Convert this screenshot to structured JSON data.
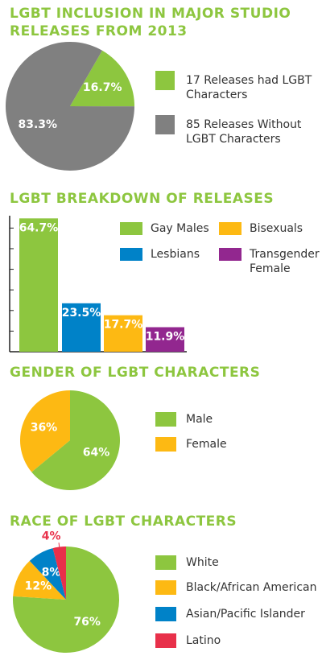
{
  "chart_data": [
    {
      "type": "pie",
      "title": "LGBT INCLUSION IN MAJOR STUDIO RELEASES FROM 2013",
      "categories": [
        "17 Releases had LGBT Characters",
        "85 Releases Without LGBT Characters"
      ],
      "values": [
        16.7,
        83.3
      ],
      "value_labels": [
        "16.7%",
        "83.3%"
      ],
      "colors": [
        "#8dc63f",
        "#808080"
      ]
    },
    {
      "type": "bar",
      "title": "LGBT BREAKDOWN OF RELEASES",
      "categories": [
        "Gay Males",
        "Lesbians",
        "Bisexuals",
        "Transgender Female"
      ],
      "values": [
        64.7,
        23.5,
        17.7,
        11.9
      ],
      "value_labels": [
        "64.7%",
        "23.5%",
        "17.7%",
        "11.9%"
      ],
      "colors": [
        "#8dc63f",
        "#0082c8",
        "#fdb913",
        "#92278f"
      ],
      "ylim": [
        0,
        66
      ],
      "yticks": [
        0,
        10,
        20,
        30,
        40,
        50,
        60
      ]
    },
    {
      "type": "pie",
      "title": "GENDER OF LGBT CHARACTERS",
      "categories": [
        "Male",
        "Female"
      ],
      "values": [
        64,
        36
      ],
      "value_labels": [
        "64%",
        "36%"
      ],
      "colors": [
        "#8dc63f",
        "#fdb913"
      ]
    },
    {
      "type": "pie",
      "title": "RACE OF LGBT CHARACTERS",
      "categories": [
        "White",
        "Black/African American",
        "Asian/Pacific Islander",
        "Latino"
      ],
      "values": [
        76,
        12,
        8,
        4
      ],
      "value_labels": [
        "76%",
        "12%",
        "8%",
        "4%"
      ],
      "colors": [
        "#8dc63f",
        "#fdb913",
        "#0082c8",
        "#e8304a"
      ]
    }
  ]
}
